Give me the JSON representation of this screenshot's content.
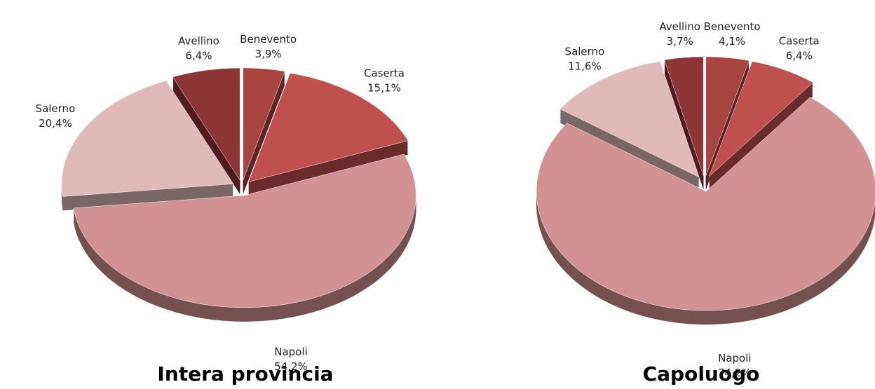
{
  "chart_data": [
    {
      "type": "pie",
      "title": "Intera provincia",
      "categories": [
        "Avellino",
        "Benevento",
        "Caserta",
        "Napoli",
        "Salerno"
      ],
      "values": [
        6.4,
        3.9,
        15.1,
        54.2,
        20.4
      ],
      "value_labels": [
        "6,4%",
        "3,9%",
        "15,1%",
        "54,2%",
        "20,4%"
      ],
      "colors": [
        "#8e3535",
        "#a84541",
        "#c0504d",
        "#d39292",
        "#e0baba"
      ]
    },
    {
      "type": "pie",
      "title": "Capoluogo",
      "categories": [
        "Avellino",
        "Benevento",
        "Caserta",
        "Napoli",
        "Salerno"
      ],
      "values": [
        3.7,
        4.1,
        6.4,
        74.2,
        11.6
      ],
      "value_labels": [
        "3,7%",
        "4,1%",
        "6,4%",
        "74,2%",
        "11,6%"
      ],
      "colors": [
        "#8e3535",
        "#a84541",
        "#c0504d",
        "#d39292",
        "#e0baba"
      ]
    }
  ]
}
